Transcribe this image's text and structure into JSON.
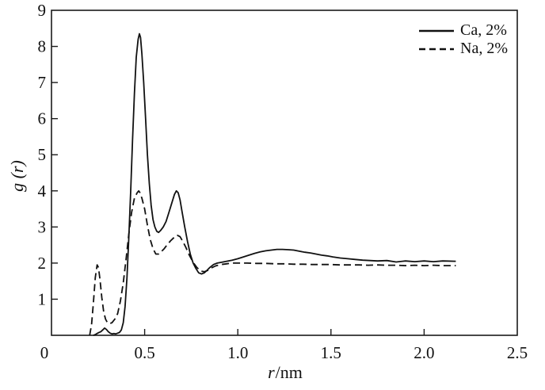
{
  "figure": {
    "background": "#ffffff",
    "line_color": "#111111",
    "frame_color": "#1a1a1a"
  },
  "chart_data": {
    "type": "line",
    "title": "",
    "xlabel_italic": "r",
    "xlabel_rest": "/nm",
    "ylabel": "g (r)",
    "xlim": [
      0,
      2.5
    ],
    "ylim": [
      0,
      9
    ],
    "x_tick_values": [
      0,
      0.5,
      1.0,
      1.5,
      2.0,
      2.5
    ],
    "x_tick_labels": [
      "0",
      "0.5",
      "1.0",
      "1.5",
      "2.0",
      "2.5"
    ],
    "y_tick_values": [
      1,
      2,
      3,
      4,
      5,
      6,
      7,
      8,
      9
    ],
    "y_tick_labels": [
      "1",
      "2",
      "3",
      "4",
      "5",
      "6",
      "7",
      "8",
      "9"
    ],
    "grid": false,
    "legend_position": "top-right",
    "series": [
      {
        "name": "Ca, 2%",
        "style": "solid",
        "color": "#111111",
        "points": [
          [
            0.225,
            0.0
          ],
          [
            0.235,
            0.02
          ],
          [
            0.245,
            0.05
          ],
          [
            0.255,
            0.08
          ],
          [
            0.265,
            0.1
          ],
          [
            0.275,
            0.15
          ],
          [
            0.285,
            0.2
          ],
          [
            0.295,
            0.16
          ],
          [
            0.305,
            0.1
          ],
          [
            0.315,
            0.06
          ],
          [
            0.325,
            0.04
          ],
          [
            0.335,
            0.05
          ],
          [
            0.345,
            0.04
          ],
          [
            0.355,
            0.06
          ],
          [
            0.365,
            0.08
          ],
          [
            0.375,
            0.15
          ],
          [
            0.385,
            0.35
          ],
          [
            0.395,
            0.8
          ],
          [
            0.405,
            1.6
          ],
          [
            0.415,
            2.7
          ],
          [
            0.425,
            4.0
          ],
          [
            0.435,
            5.4
          ],
          [
            0.445,
            6.7
          ],
          [
            0.455,
            7.7
          ],
          [
            0.465,
            8.2
          ],
          [
            0.472,
            8.35
          ],
          [
            0.478,
            8.25
          ],
          [
            0.485,
            7.8
          ],
          [
            0.495,
            7.0
          ],
          [
            0.505,
            6.0
          ],
          [
            0.515,
            5.0
          ],
          [
            0.525,
            4.2
          ],
          [
            0.535,
            3.6
          ],
          [
            0.545,
            3.2
          ],
          [
            0.555,
            3.0
          ],
          [
            0.565,
            2.88
          ],
          [
            0.575,
            2.85
          ],
          [
            0.585,
            2.9
          ],
          [
            0.6,
            3.0
          ],
          [
            0.615,
            3.15
          ],
          [
            0.63,
            3.4
          ],
          [
            0.645,
            3.65
          ],
          [
            0.66,
            3.9
          ],
          [
            0.67,
            4.0
          ],
          [
            0.68,
            3.95
          ],
          [
            0.69,
            3.75
          ],
          [
            0.7,
            3.45
          ],
          [
            0.715,
            3.0
          ],
          [
            0.73,
            2.6
          ],
          [
            0.745,
            2.25
          ],
          [
            0.76,
            2.0
          ],
          [
            0.775,
            1.85
          ],
          [
            0.79,
            1.73
          ],
          [
            0.805,
            1.7
          ],
          [
            0.82,
            1.73
          ],
          [
            0.835,
            1.8
          ],
          [
            0.85,
            1.88
          ],
          [
            0.87,
            1.96
          ],
          [
            0.89,
            2.0
          ],
          [
            0.91,
            2.02
          ],
          [
            0.94,
            2.05
          ],
          [
            0.97,
            2.08
          ],
          [
            1.0,
            2.12
          ],
          [
            1.03,
            2.17
          ],
          [
            1.06,
            2.22
          ],
          [
            1.09,
            2.27
          ],
          [
            1.12,
            2.31
          ],
          [
            1.15,
            2.34
          ],
          [
            1.18,
            2.36
          ],
          [
            1.21,
            2.38
          ],
          [
            1.24,
            2.38
          ],
          [
            1.27,
            2.37
          ],
          [
            1.3,
            2.36
          ],
          [
            1.33,
            2.33
          ],
          [
            1.36,
            2.3
          ],
          [
            1.39,
            2.28
          ],
          [
            1.42,
            2.25
          ],
          [
            1.45,
            2.22
          ],
          [
            1.48,
            2.2
          ],
          [
            1.51,
            2.17
          ],
          [
            1.55,
            2.14
          ],
          [
            1.59,
            2.12
          ],
          [
            1.63,
            2.1
          ],
          [
            1.67,
            2.08
          ],
          [
            1.71,
            2.07
          ],
          [
            1.75,
            2.06
          ],
          [
            1.8,
            2.07
          ],
          [
            1.85,
            2.03
          ],
          [
            1.9,
            2.06
          ],
          [
            1.95,
            2.04
          ],
          [
            2.0,
            2.06
          ],
          [
            2.05,
            2.04
          ],
          [
            2.1,
            2.06
          ],
          [
            2.17,
            2.05
          ]
        ]
      },
      {
        "name": "Na, 2%",
        "style": "dashed",
        "color": "#111111",
        "points": [
          [
            0.205,
            0.0
          ],
          [
            0.215,
            0.3
          ],
          [
            0.225,
            0.9
          ],
          [
            0.235,
            1.6
          ],
          [
            0.245,
            1.95
          ],
          [
            0.252,
            1.88
          ],
          [
            0.26,
            1.55
          ],
          [
            0.27,
            1.05
          ],
          [
            0.28,
            0.65
          ],
          [
            0.29,
            0.45
          ],
          [
            0.3,
            0.35
          ],
          [
            0.31,
            0.32
          ],
          [
            0.325,
            0.35
          ],
          [
            0.34,
            0.45
          ],
          [
            0.355,
            0.6
          ],
          [
            0.37,
            0.95
          ],
          [
            0.385,
            1.45
          ],
          [
            0.4,
            2.1
          ],
          [
            0.415,
            2.8
          ],
          [
            0.43,
            3.4
          ],
          [
            0.445,
            3.8
          ],
          [
            0.46,
            3.95
          ],
          [
            0.468,
            4.0
          ],
          [
            0.475,
            3.95
          ],
          [
            0.485,
            3.8
          ],
          [
            0.5,
            3.5
          ],
          [
            0.515,
            3.05
          ],
          [
            0.53,
            2.65
          ],
          [
            0.545,
            2.4
          ],
          [
            0.56,
            2.25
          ],
          [
            0.575,
            2.25
          ],
          [
            0.59,
            2.32
          ],
          [
            0.605,
            2.4
          ],
          [
            0.62,
            2.5
          ],
          [
            0.64,
            2.62
          ],
          [
            0.66,
            2.72
          ],
          [
            0.675,
            2.77
          ],
          [
            0.69,
            2.73
          ],
          [
            0.705,
            2.6
          ],
          [
            0.72,
            2.45
          ],
          [
            0.74,
            2.22
          ],
          [
            0.76,
            2.02
          ],
          [
            0.78,
            1.88
          ],
          [
            0.8,
            1.78
          ],
          [
            0.82,
            1.76
          ],
          [
            0.84,
            1.8
          ],
          [
            0.86,
            1.87
          ],
          [
            0.88,
            1.92
          ],
          [
            0.91,
            1.96
          ],
          [
            0.94,
            1.98
          ],
          [
            0.97,
            2.0
          ],
          [
            1.0,
            2.0
          ],
          [
            1.05,
            2.0
          ],
          [
            1.1,
            1.99
          ],
          [
            1.15,
            1.99
          ],
          [
            1.2,
            1.98
          ],
          [
            1.25,
            1.98
          ],
          [
            1.3,
            1.97
          ],
          [
            1.35,
            1.97
          ],
          [
            1.4,
            1.96
          ],
          [
            1.45,
            1.96
          ],
          [
            1.5,
            1.96
          ],
          [
            1.55,
            1.95
          ],
          [
            1.6,
            1.95
          ],
          [
            1.65,
            1.95
          ],
          [
            1.7,
            1.94
          ],
          [
            1.75,
            1.95
          ],
          [
            1.8,
            1.94
          ],
          [
            1.85,
            1.94
          ],
          [
            1.9,
            1.93
          ],
          [
            1.95,
            1.94
          ],
          [
            2.0,
            1.93
          ],
          [
            2.05,
            1.94
          ],
          [
            2.1,
            1.93
          ],
          [
            2.17,
            1.93
          ]
        ]
      }
    ]
  }
}
